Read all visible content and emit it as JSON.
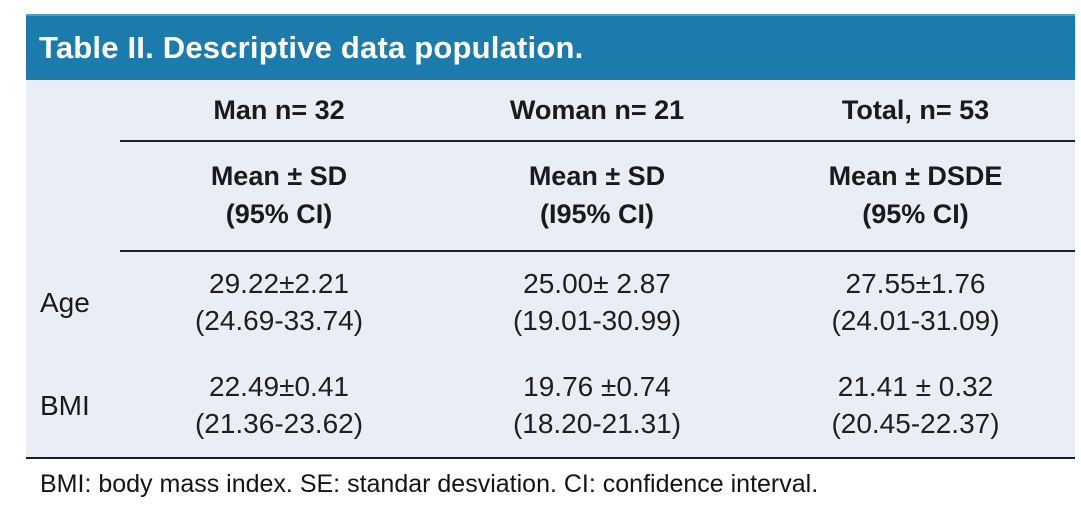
{
  "title": "Table II. Descriptive data population.",
  "table": {
    "group_headers": [
      "Man n= 32",
      "Woman n= 21",
      "Total, n= 53"
    ],
    "stat_headers": [
      {
        "line1": "Mean ± SD",
        "line2": "(95% CI)"
      },
      {
        "line1": "Mean ± SD",
        "line2": "(I95% CI)"
      },
      {
        "line1": "Mean ± DSDE",
        "line2": "(95% CI)"
      }
    ],
    "rows": [
      {
        "label": "Age",
        "cells": [
          {
            "mean": "29.22±2.21",
            "ci": "(24.69-33.74)"
          },
          {
            "mean": "25.00± 2.87",
            "ci": "(19.01-30.99)"
          },
          {
            "mean": "27.55±1.76",
            "ci": "(24.01-31.09)"
          }
        ]
      },
      {
        "label": "BMI",
        "cells": [
          {
            "mean": "22.49±0.41",
            "ci": "(21.36-23.62)"
          },
          {
            "mean": "19.76 ±0.74",
            "ci": "(18.20-21.31)"
          },
          {
            "mean": "21.41 ± 0.32",
            "ci": "(20.45-22.37)"
          }
        ]
      }
    ]
  },
  "footnote": "BMI: body mass index. SE: standar desviation. CI: confidence interval.",
  "colors": {
    "header_bg": "#1c7bad",
    "panel_bg": "#e9edf6",
    "rule": "#1c1c1c",
    "title_text": "#ffffff"
  }
}
